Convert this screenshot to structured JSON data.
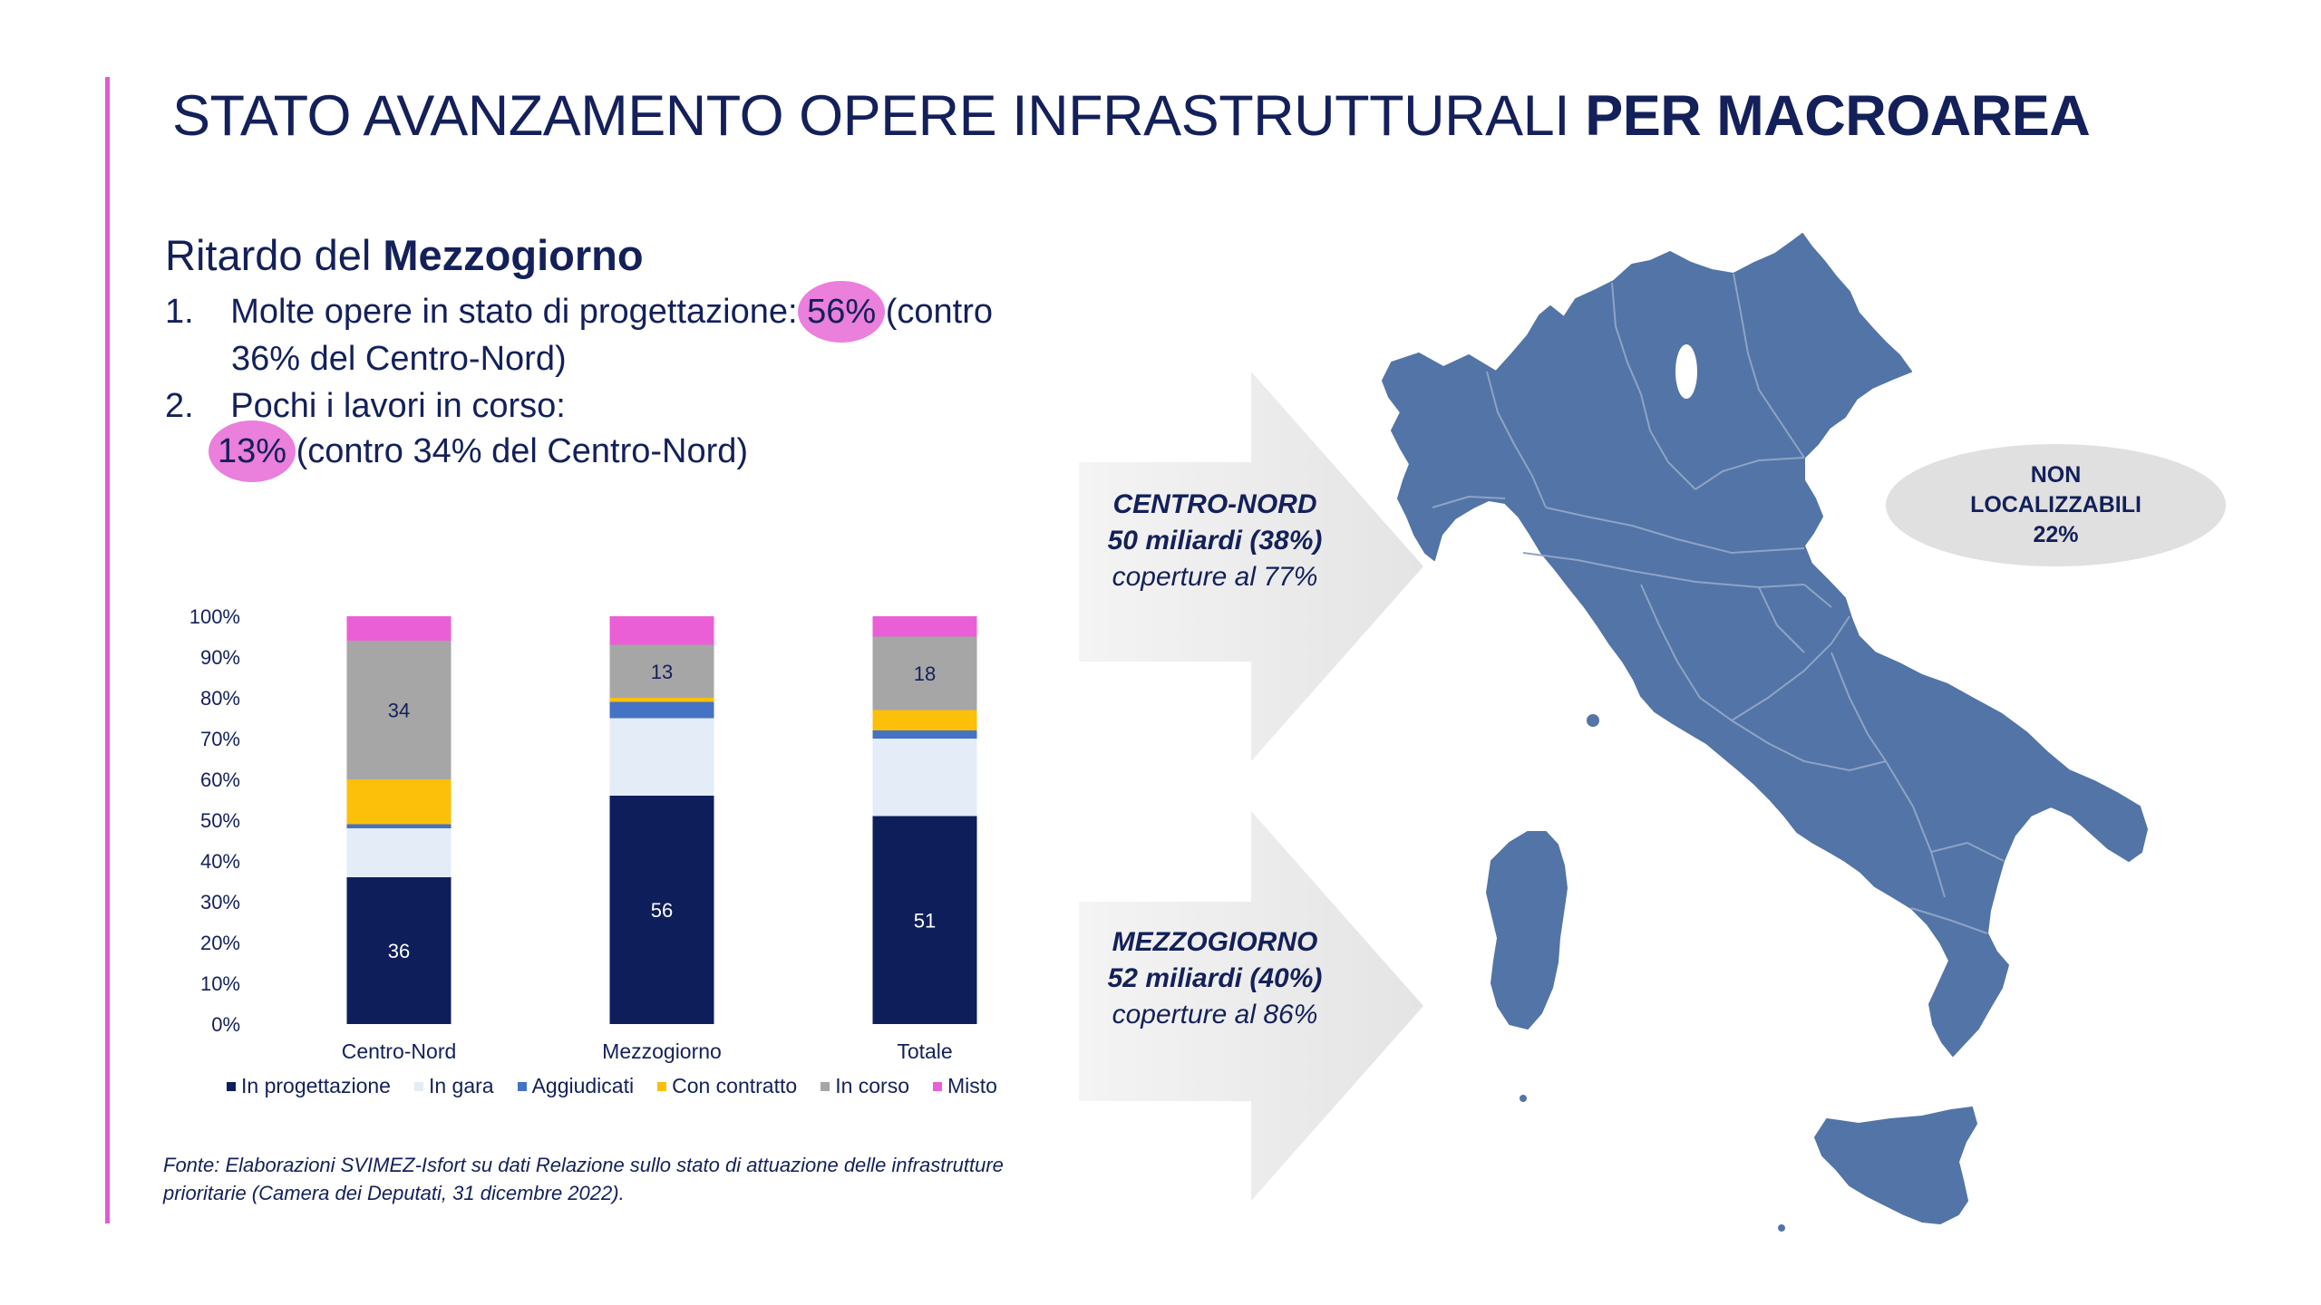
{
  "slide": {
    "title_regular": "STATO AVANZAMENTO OPERE INFRASTRUTTURALI ",
    "title_bold": "PER MACROAREA",
    "subtitle_regular": "Ritardo del ",
    "subtitle_bold": "Mezzogiorno",
    "points": [
      {
        "num": "1.",
        "pre": "Molte opere in stato di progettazione:",
        "highlight": "56%",
        "post": "(contro",
        "line2": "36% del Centro-Nord)"
      },
      {
        "num": "2.",
        "pre": "Pochi i lavori in corso:",
        "highlight": "13%",
        "post": "(contro 34% del Centro-Nord)"
      }
    ],
    "source_line1": "Fonte: Elaborazioni SVIMEZ-Isfort su dati Relazione sullo stato di attuazione delle infrastrutture",
    "source_line2": "prioritarie (Camera dei Deputati, 31 dicembre 2022).",
    "arrow_center_north": {
      "area": "CENTRO-NORD",
      "amount": "50 miliardi (38%)",
      "coverage": "coperture al 77%"
    },
    "arrow_south": {
      "area": "MEZZOGIORNO",
      "amount": "52 miliardi (40%)",
      "coverage": "coperture al 86%"
    },
    "non_localizable": {
      "line1": "NON",
      "line2": "LOCALIZZABILI",
      "value": "22%"
    },
    "colors": {
      "navy": "#13205a",
      "accent_pink": "#e45bd0",
      "map_fill": "#5374a6",
      "map_border": "#8ea3c6",
      "arrow_gray": "#ececec",
      "ellipse_gray": "#e0e0e0"
    }
  },
  "chart_data": {
    "type": "bar",
    "stacked": true,
    "categories": [
      "Centro-Nord",
      "Mezzogiorno",
      "Totale"
    ],
    "ylim": [
      0,
      100
    ],
    "yticks": [
      "0%",
      "10%",
      "20%",
      "30%",
      "40%",
      "50%",
      "60%",
      "70%",
      "80%",
      "90%",
      "100%"
    ],
    "series": [
      {
        "name": "In progettazione",
        "color": "#0e1e5b",
        "values": [
          36,
          56,
          51
        ],
        "labels": [
          "36",
          "56",
          "51"
        ]
      },
      {
        "name": "In gara",
        "color": "#e3ecf7",
        "values": [
          12,
          19,
          19
        ],
        "labels": [
          "",
          "",
          ""
        ]
      },
      {
        "name": "Aggiudicati",
        "color": "#4472c4",
        "values": [
          1,
          4,
          2
        ],
        "labels": [
          "",
          "",
          ""
        ]
      },
      {
        "name": "Con contratto",
        "color": "#fcbf0a",
        "values": [
          11,
          1,
          5
        ],
        "labels": [
          "",
          "",
          ""
        ]
      },
      {
        "name": "In corso",
        "color": "#a6a6a6",
        "values": [
          34,
          13,
          18
        ],
        "labels": [
          "34",
          "13",
          "18"
        ]
      },
      {
        "name": "Misto",
        "color": "#ea5fd5",
        "values": [
          6,
          7,
          5
        ],
        "labels": [
          "",
          "",
          ""
        ]
      }
    ]
  }
}
